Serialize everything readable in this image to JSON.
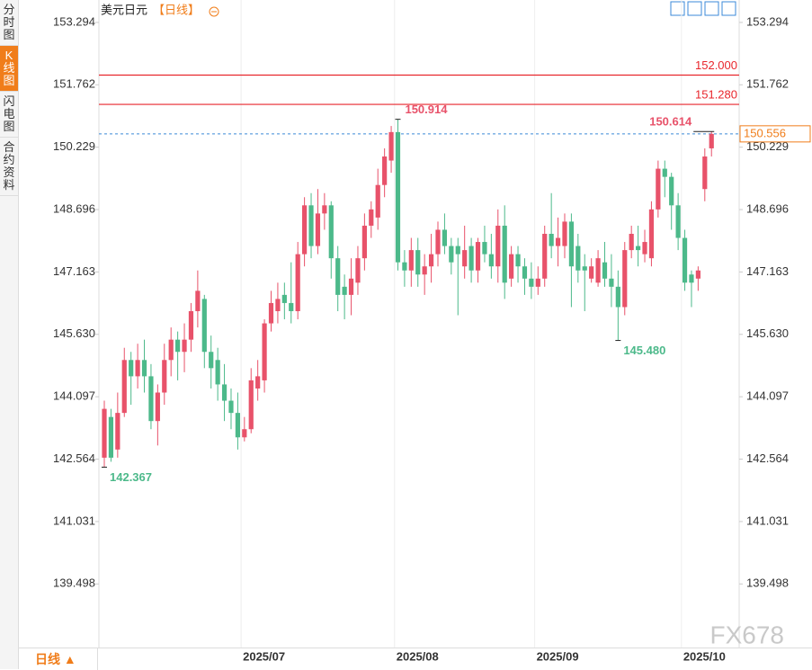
{
  "sidebar_tabs": [
    "分时图",
    "K线图",
    "闪电图",
    "合约资料"
  ],
  "period_button": "日线 ▲",
  "watermark": "FX678",
  "chart_data": {
    "type": "candlestick",
    "title": "美元日元",
    "period": "【日线】",
    "up_color": "#e8526a",
    "down_color": "#4cb98a",
    "categories": [
      null,
      null,
      null,
      null,
      null,
      null,
      null,
      null,
      null,
      null,
      null,
      null,
      null,
      null,
      null,
      null,
      null,
      null,
      null,
      null,
      null,
      "2025/07",
      null,
      null,
      null,
      null,
      null,
      null,
      null,
      null,
      null,
      null,
      null,
      null,
      null,
      null,
      null,
      null,
      null,
      null,
      null,
      null,
      null,
      null,
      "2025/08",
      null,
      null,
      null,
      null,
      null,
      null,
      null,
      null,
      null,
      null,
      null,
      null,
      null,
      null,
      null,
      null,
      null,
      null,
      null,
      null,
      "2025/09",
      null,
      null,
      null,
      null,
      null,
      null,
      null,
      null,
      null,
      null,
      null,
      null,
      null,
      null,
      null,
      null,
      null,
      null,
      null,
      null,
      null,
      "2025/10",
      null,
      null,
      null,
      null
    ],
    "open": [
      142.6,
      143.6,
      142.8,
      143.7,
      145.0,
      144.6,
      145.0,
      144.6,
      143.5,
      144.2,
      145.0,
      145.5,
      145.2,
      145.5,
      146.2,
      146.5,
      145.2,
      145.0,
      144.4,
      144.0,
      143.7,
      143.1,
      143.3,
      144.3,
      144.5,
      145.9,
      146.2,
      146.6,
      146.4,
      146.2,
      147.6,
      148.8,
      147.8,
      148.6,
      148.8,
      147.5,
      146.8,
      146.6,
      146.9,
      147.5,
      148.3,
      148.5,
      149.3,
      149.9,
      150.6,
      147.4,
      147.2,
      147.7,
      147.1,
      147.3,
      147.6,
      148.2,
      147.8,
      147.8,
      147.3,
      147.8,
      147.2,
      147.9,
      147.6,
      147.3,
      148.3,
      147.0,
      147.6,
      147.3,
      147.0,
      146.8,
      147.0,
      148.1,
      147.8,
      147.8,
      148.4,
      147.8,
      147.3,
      147.0,
      146.9,
      147.4,
      147.0,
      146.8,
      146.3,
      147.7,
      147.8,
      147.6,
      147.5,
      148.7,
      149.7,
      149.5,
      148.8,
      148.0,
      147.1,
      147.0,
      149.2,
      150.2
    ],
    "high": [
      144.0,
      143.8,
      144.2,
      145.3,
      145.2,
      145.4,
      145.5,
      144.9,
      144.4,
      145.4,
      145.8,
      145.7,
      145.9,
      146.4,
      147.2,
      146.6,
      145.6,
      145.3,
      144.9,
      144.3,
      144.2,
      143.6,
      144.8,
      145.0,
      146.0,
      146.7,
      146.9,
      146.9,
      147.4,
      147.9,
      149.0,
      149.1,
      149.2,
      149.1,
      148.9,
      147.8,
      147.1,
      147.5,
      147.8,
      148.6,
      148.9,
      149.7,
      150.2,
      150.75,
      150.914,
      147.7,
      148.0,
      148.0,
      147.6,
      148.1,
      148.4,
      148.6,
      148.0,
      148.0,
      148.3,
      148.0,
      148.0,
      148.3,
      148.1,
      148.7,
      148.8,
      147.8,
      147.8,
      147.5,
      147.4,
      147.3,
      148.3,
      149.1,
      148.5,
      148.6,
      148.6,
      148.1,
      147.6,
      147.5,
      147.7,
      147.9,
      147.6,
      147.2,
      147.9,
      148.3,
      148.3,
      148.2,
      148.9,
      149.9,
      149.9,
      149.6,
      149.1,
      148.2,
      147.2,
      147.3,
      150.2,
      150.614
    ],
    "low": [
      142.367,
      142.5,
      142.6,
      143.6,
      143.9,
      144.3,
      144.2,
      143.3,
      142.9,
      143.9,
      144.6,
      144.5,
      144.7,
      145.2,
      145.8,
      144.8,
      144.3,
      144.0,
      143.5,
      143.3,
      142.8,
      143.0,
      143.2,
      144.0,
      144.2,
      145.7,
      145.9,
      146.0,
      145.9,
      146.0,
      147.3,
      147.5,
      147.6,
      148.2,
      147.0,
      146.2,
      146.0,
      146.1,
      146.6,
      147.2,
      148.0,
      148.2,
      149.0,
      149.6,
      147.2,
      146.8,
      146.8,
      146.8,
      146.6,
      146.9,
      147.3,
      147.6,
      147.1,
      146.1,
      147.0,
      146.9,
      146.9,
      147.4,
      147.0,
      146.9,
      146.5,
      146.8,
      146.9,
      146.6,
      146.5,
      146.6,
      146.8,
      147.5,
      147.3,
      147.5,
      146.3,
      146.9,
      146.2,
      146.9,
      146.8,
      146.8,
      146.3,
      145.48,
      146.1,
      147.5,
      147.3,
      147.4,
      147.3,
      148.5,
      149.0,
      148.2,
      147.7,
      146.7,
      146.3,
      146.7,
      148.9,
      150.0
    ],
    "close": [
      143.8,
      142.6,
      143.7,
      145.0,
      144.6,
      145.0,
      144.6,
      143.5,
      144.2,
      145.0,
      145.5,
      145.2,
      145.5,
      146.2,
      146.7,
      145.2,
      144.8,
      144.4,
      144.0,
      143.7,
      143.1,
      143.3,
      144.5,
      144.6,
      145.9,
      146.4,
      146.5,
      146.4,
      146.2,
      147.6,
      148.8,
      147.8,
      148.6,
      148.8,
      147.5,
      146.6,
      146.6,
      147.0,
      147.5,
      148.3,
      148.7,
      149.3,
      150.0,
      150.6,
      147.4,
      147.2,
      147.7,
      147.1,
      147.3,
      147.6,
      148.2,
      147.8,
      147.4,
      147.6,
      147.7,
      147.2,
      147.9,
      147.6,
      147.3,
      148.3,
      146.9,
      147.6,
      147.3,
      147.0,
      146.8,
      147.0,
      148.1,
      147.8,
      148.0,
      148.4,
      147.3,
      147.2,
      147.2,
      147.3,
      147.5,
      147.0,
      146.8,
      146.3,
      147.7,
      148.1,
      147.7,
      147.9,
      148.7,
      149.7,
      149.5,
      148.8,
      148.0,
      146.9,
      146.9,
      147.2,
      150.0,
      150.556
    ],
    "ylim": [
      137.98,
      153.845
    ],
    "yticks": [
      153.294,
      151.762,
      150.229,
      148.696,
      147.163,
      145.63,
      144.097,
      142.564,
      141.031,
      139.498
    ],
    "ytick_labels": [
      "153.294",
      "151.762",
      "150.229",
      "148.696",
      "147.163",
      "145.630",
      "144.097",
      "142.564",
      "141.031",
      "139.498"
    ],
    "reference_lines": [
      {
        "value": 152,
        "label": "152.000"
      },
      {
        "value": 151.28,
        "label": "151.280"
      }
    ],
    "reference_color": "#e8262c",
    "current_price": {
      "value": 150.556,
      "label": "150.556"
    },
    "high_marks": [
      {
        "value": 150.914,
        "label": "150.914"
      },
      {
        "value": 150.614,
        "label": "150.614"
      }
    ],
    "low_marks": [
      {
        "value": 145.48,
        "label": "145.480"
      },
      {
        "value": 142.367,
        "label": "142.367"
      }
    ]
  }
}
